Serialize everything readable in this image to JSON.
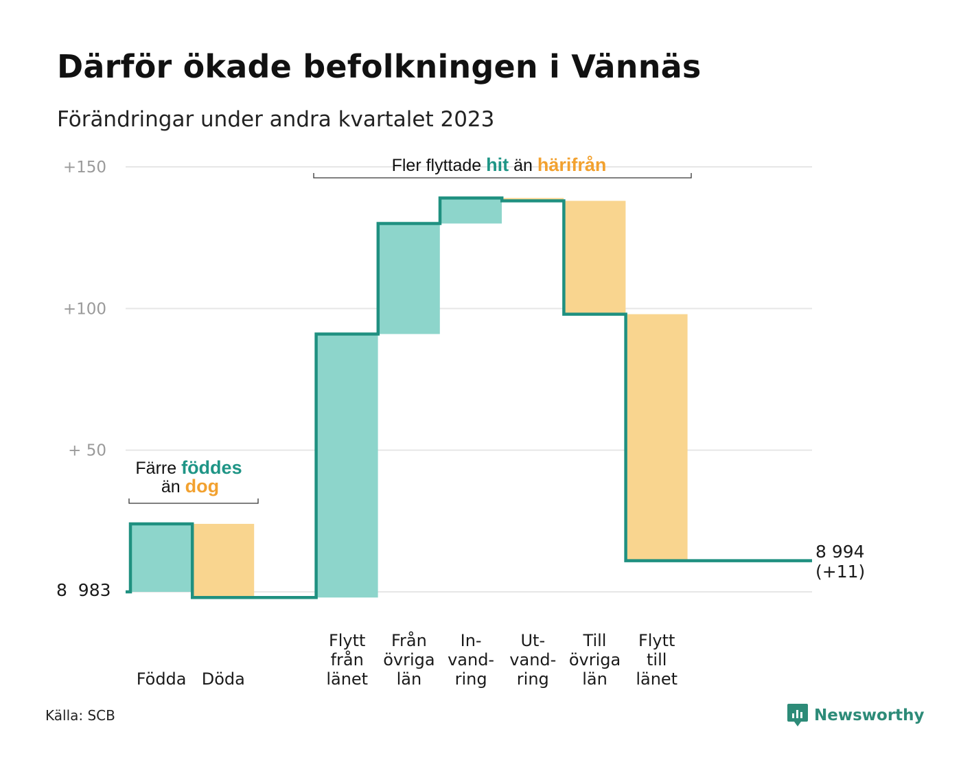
{
  "title": "Därför ökade befolkningen i Vännäs",
  "subtitle": "Förändringar under andra kvartalet 2023",
  "source": "Källa: SCB",
  "brand": {
    "name": "Newsworthy",
    "icon": "newsworthy-logo-icon"
  },
  "colors": {
    "increase": "#8dd5cb",
    "decrease": "#f9d58f",
    "line": "#1f9080",
    "hit": "#1f9586",
    "harifran": "#f2a12f",
    "grid": "#e6e6e6"
  },
  "annotations": {
    "births": {
      "line1_prefix": "Färre ",
      "line1_highlight": "föddes",
      "line2_prefix": "än ",
      "line2_highlight": "dog"
    },
    "migration": {
      "prefix": "Fler flyttade ",
      "highlight1": "hit",
      "middle": " än ",
      "highlight2": "härifrån"
    }
  },
  "chart_data": {
    "type": "waterfall",
    "title": "Därför ökade befolkningen i Vännäs",
    "subtitle": "Förändringar under andra kvartalet 2023",
    "start": {
      "label": "8  983",
      "value": 8983,
      "offset": 0
    },
    "end": {
      "label": "8 994",
      "change_label": "(+11)",
      "value": 8994,
      "offset": 11
    },
    "ylim": [
      -2,
      150
    ],
    "yticks": [
      {
        "value": 150,
        "label": "+150"
      },
      {
        "value": 100,
        "label": "+100"
      },
      {
        "value": 50,
        "label": "+  50"
      }
    ],
    "grid": true,
    "steps": [
      {
        "label": [
          "Födda"
        ],
        "value": 24,
        "kind": "increase"
      },
      {
        "label": [
          "Döda"
        ],
        "value": -26,
        "kind": "decrease"
      },
      {
        "label": [],
        "value": 0,
        "kind": "gap"
      },
      {
        "label": [
          "Flytt",
          "från",
          "länet"
        ],
        "value": 93,
        "kind": "increase"
      },
      {
        "label": [
          "Från",
          "övriga",
          "län"
        ],
        "value": 39,
        "kind": "increase"
      },
      {
        "label": [
          "In-",
          "vand-",
          "ring"
        ],
        "value": 9,
        "kind": "increase"
      },
      {
        "label": [
          "Ut-",
          "vand-",
          "ring"
        ],
        "value": -1,
        "kind": "decrease"
      },
      {
        "label": [
          "Till",
          "övriga",
          "län"
        ],
        "value": -40,
        "kind": "decrease"
      },
      {
        "label": [
          "Flytt",
          "till",
          "länet"
        ],
        "value": -87,
        "kind": "decrease"
      }
    ]
  }
}
